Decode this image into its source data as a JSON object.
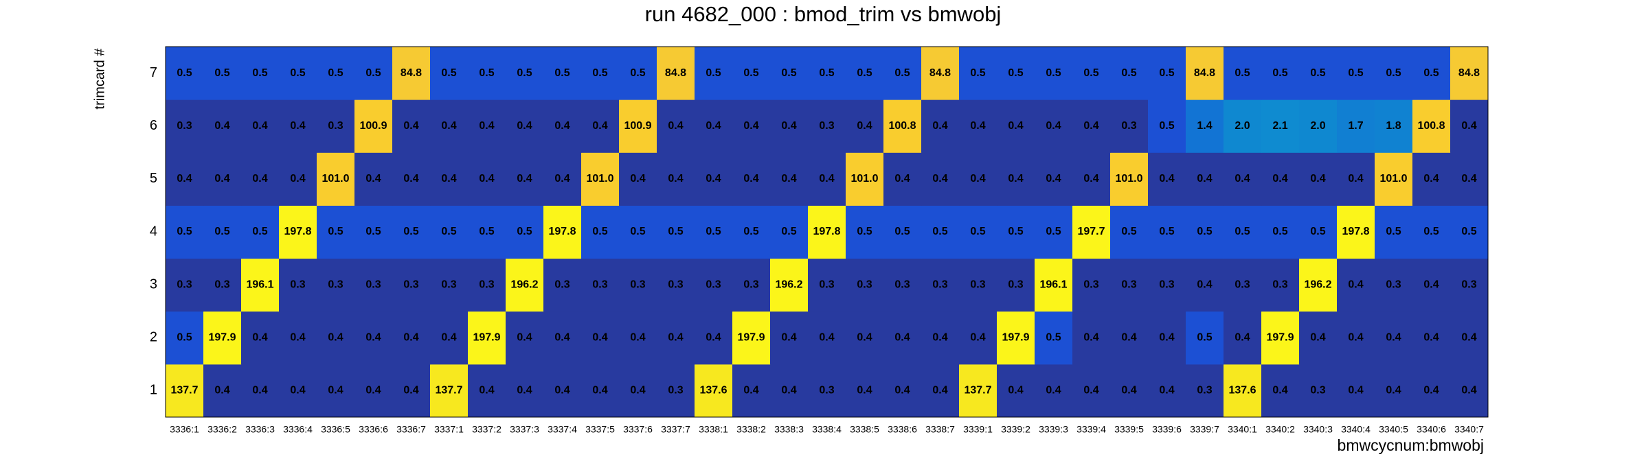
{
  "chart_data": {
    "type": "heatmap",
    "title": "run 4682_000 : bmod_trim vs bmwobj",
    "x_label": "bmwcycnum:bmwobj",
    "y_label": "trimcard #",
    "x_categories": [
      "3336:1",
      "3336:2",
      "3336:3",
      "3336:4",
      "3336:5",
      "3336:6",
      "3336:7",
      "3337:1",
      "3337:2",
      "3337:3",
      "3337:4",
      "3337:5",
      "3337:6",
      "3337:7",
      "3338:1",
      "3338:2",
      "3338:3",
      "3338:4",
      "3338:5",
      "3338:6",
      "3338:7",
      "3339:1",
      "3339:2",
      "3339:3",
      "3339:4",
      "3339:5",
      "3339:6",
      "3339:7",
      "3340:1",
      "3340:2",
      "3340:3",
      "3340:4",
      "3340:5",
      "3340:6",
      "3340:7"
    ],
    "y_categories": [
      "1",
      "2",
      "3",
      "4",
      "5",
      "6",
      "7"
    ],
    "values": [
      [
        137.7,
        0.4,
        0.4,
        0.4,
        0.4,
        0.4,
        0.4,
        137.7,
        0.4,
        0.4,
        0.4,
        0.4,
        0.4,
        0.3,
        137.6,
        0.4,
        0.4,
        0.3,
        0.4,
        0.4,
        0.4,
        137.7,
        0.4,
        0.4,
        0.4,
        0.4,
        0.4,
        0.3,
        137.6,
        0.4,
        0.3,
        0.4,
        0.4,
        0.4,
        0.4
      ],
      [
        0.5,
        197.9,
        0.4,
        0.4,
        0.4,
        0.4,
        0.4,
        0.4,
        197.9,
        0.4,
        0.4,
        0.4,
        0.4,
        0.4,
        0.4,
        197.9,
        0.4,
        0.4,
        0.4,
        0.4,
        0.4,
        0.4,
        197.9,
        0.5,
        0.4,
        0.4,
        0.4,
        0.5,
        0.4,
        197.9,
        0.4,
        0.4,
        0.4,
        0.4,
        0.4
      ],
      [
        0.3,
        0.3,
        196.1,
        0.3,
        0.3,
        0.3,
        0.3,
        0.3,
        0.3,
        196.2,
        0.3,
        0.3,
        0.3,
        0.3,
        0.3,
        0.3,
        196.2,
        0.3,
        0.3,
        0.3,
        0.3,
        0.3,
        0.3,
        196.1,
        0.3,
        0.3,
        0.3,
        0.4,
        0.3,
        0.3,
        196.2,
        0.4,
        0.3,
        0.4,
        0.3
      ],
      [
        0.5,
        0.5,
        0.5,
        197.8,
        0.5,
        0.5,
        0.5,
        0.5,
        0.5,
        0.5,
        197.8,
        0.5,
        0.5,
        0.5,
        0.5,
        0.5,
        0.5,
        197.8,
        0.5,
        0.5,
        0.5,
        0.5,
        0.5,
        0.5,
        197.7,
        0.5,
        0.5,
        0.5,
        0.5,
        0.5,
        0.5,
        197.8,
        0.5,
        0.5,
        0.5
      ],
      [
        0.4,
        0.4,
        0.4,
        0.4,
        101.0,
        0.4,
        0.4,
        0.4,
        0.4,
        0.4,
        0.4,
        101.0,
        0.4,
        0.4,
        0.4,
        0.4,
        0.4,
        0.4,
        101.0,
        0.4,
        0.4,
        0.4,
        0.4,
        0.4,
        0.4,
        101.0,
        0.4,
        0.4,
        0.4,
        0.4,
        0.4,
        0.4,
        101.0,
        0.4,
        0.4
      ],
      [
        0.3,
        0.4,
        0.4,
        0.4,
        0.3,
        100.9,
        0.4,
        0.4,
        0.4,
        0.4,
        0.4,
        0.4,
        100.9,
        0.4,
        0.4,
        0.4,
        0.4,
        0.3,
        0.4,
        100.8,
        0.4,
        0.4,
        0.4,
        0.4,
        0.4,
        0.3,
        0.5,
        1.4,
        2.0,
        2.1,
        2.0,
        1.7,
        1.8,
        100.8,
        0.4
      ],
      [
        0.5,
        0.5,
        0.5,
        0.5,
        0.5,
        0.5,
        84.8,
        0.5,
        0.5,
        0.5,
        0.5,
        0.5,
        0.5,
        84.8,
        0.5,
        0.5,
        0.5,
        0.5,
        0.5,
        0.5,
        84.8,
        0.5,
        0.5,
        0.5,
        0.5,
        0.5,
        0.5,
        84.8,
        0.5,
        0.5,
        0.5,
        0.5,
        0.5,
        0.5,
        84.8
      ]
    ],
    "value_labels": [
      [
        "137.7",
        "0.4",
        "0.4",
        "0.4",
        "0.4",
        "0.4",
        "0.4",
        "137.7",
        "0.4",
        "0.4",
        "0.4",
        "0.4",
        "0.4",
        "0.3",
        "137.6",
        "0.4",
        "0.4",
        "0.3",
        "0.4",
        "0.4",
        "0.4",
        "137.7",
        "0.4",
        "0.4",
        "0.4",
        "0.4",
        "0.4",
        "0.3",
        "137.6",
        "0.4",
        "0.3",
        "0.4",
        "0.4",
        "0.4",
        "0.4"
      ],
      [
        "0.5",
        "197.9",
        "0.4",
        "0.4",
        "0.4",
        "0.4",
        "0.4",
        "0.4",
        "197.9",
        "0.4",
        "0.4",
        "0.4",
        "0.4",
        "0.4",
        "0.4",
        "197.9",
        "0.4",
        "0.4",
        "0.4",
        "0.4",
        "0.4",
        "0.4",
        "197.9",
        "0.5",
        "0.4",
        "0.4",
        "0.4",
        "0.5",
        "0.4",
        "197.9",
        "0.4",
        "0.4",
        "0.4",
        "0.4",
        "0.4"
      ],
      [
        "0.3",
        "0.3",
        "196.1",
        "0.3",
        "0.3",
        "0.3",
        "0.3",
        "0.3",
        "0.3",
        "196.2",
        "0.3",
        "0.3",
        "0.3",
        "0.3",
        "0.3",
        "0.3",
        "196.2",
        "0.3",
        "0.3",
        "0.3",
        "0.3",
        "0.3",
        "0.3",
        "196.1",
        "0.3",
        "0.3",
        "0.3",
        "0.4",
        "0.3",
        "0.3",
        "196.2",
        "0.4",
        "0.3",
        "0.4",
        "0.3"
      ],
      [
        "0.5",
        "0.5",
        "0.5",
        "197.8",
        "0.5",
        "0.5",
        "0.5",
        "0.5",
        "0.5",
        "0.5",
        "197.8",
        "0.5",
        "0.5",
        "0.5",
        "0.5",
        "0.5",
        "0.5",
        "197.8",
        "0.5",
        "0.5",
        "0.5",
        "0.5",
        "0.5",
        "0.5",
        "197.7",
        "0.5",
        "0.5",
        "0.5",
        "0.5",
        "0.5",
        "0.5",
        "197.8",
        "0.5",
        "0.5",
        "0.5"
      ],
      [
        "0.4",
        "0.4",
        "0.4",
        "0.4",
        "101.0",
        "0.4",
        "0.4",
        "0.4",
        "0.4",
        "0.4",
        "0.4",
        "101.0",
        "0.4",
        "0.4",
        "0.4",
        "0.4",
        "0.4",
        "0.4",
        "101.0",
        "0.4",
        "0.4",
        "0.4",
        "0.4",
        "0.4",
        "0.4",
        "101.0",
        "0.4",
        "0.4",
        "0.4",
        "0.4",
        "0.4",
        "0.4",
        "101.0",
        "0.4",
        "0.4"
      ],
      [
        "0.3",
        "0.4",
        "0.4",
        "0.4",
        "0.3",
        "100.9",
        "0.4",
        "0.4",
        "0.4",
        "0.4",
        "0.4",
        "0.4",
        "100.9",
        "0.4",
        "0.4",
        "0.4",
        "0.4",
        "0.3",
        "0.4",
        "100.8",
        "0.4",
        "0.4",
        "0.4",
        "0.4",
        "0.4",
        "0.3",
        "0.5",
        "1.4",
        "2.0",
        "2.1",
        "2.0",
        "1.7",
        "1.8",
        "100.8",
        "0.4"
      ],
      [
        "0.5",
        "0.5",
        "0.5",
        "0.5",
        "0.5",
        "0.5",
        "84.8",
        "0.5",
        "0.5",
        "0.5",
        "0.5",
        "0.5",
        "0.5",
        "84.8",
        "0.5",
        "0.5",
        "0.5",
        "0.5",
        "0.5",
        "0.5",
        "84.8",
        "0.5",
        "0.5",
        "0.5",
        "0.5",
        "0.5",
        "0.5",
        "84.8",
        "0.5",
        "0.5",
        "0.5",
        "0.5",
        "0.5",
        "0.5",
        "84.8"
      ]
    ]
  }
}
